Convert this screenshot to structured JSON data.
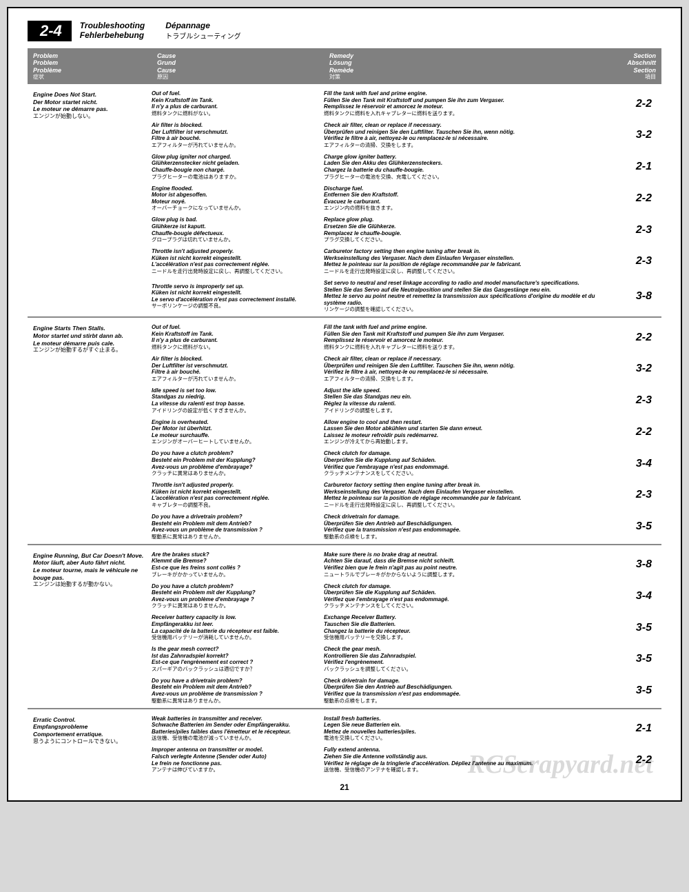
{
  "page_number": "21",
  "watermark": "RCScrapyard.net",
  "header": {
    "badge": "2-4",
    "titles": {
      "en": "Troubleshooting",
      "fr": "Dépannage",
      "de": "Fehlerbehebung",
      "jp": "トラブルシューティング"
    }
  },
  "columns": {
    "problem": {
      "en": "Problem",
      "de": "Problem",
      "fr": "Problème",
      "jp": "症状"
    },
    "cause": {
      "en": "Cause",
      "de": "Grund",
      "fr": "Cause",
      "jp": "原因"
    },
    "remedy": {
      "en": "Remedy",
      "de": "Lösung",
      "fr": "Remède",
      "jp": "対策"
    },
    "section": {
      "en": "Section",
      "de": "Abschnitt",
      "fr": "Section",
      "jp": "項目"
    }
  },
  "groups": [
    {
      "problem": {
        "en": "Engine Does Not Start.",
        "de": "Der Motor startet nicht.",
        "fr": "Le moteur ne démarre pas.",
        "jp": "エンジンが始動しない。"
      },
      "rows": [
        {
          "cause": {
            "en": "Out of fuel.",
            "de": "Kein Kraftstoff im Tank.",
            "fr": "Il n'y a plus de carburant.",
            "jp": "燃料タンクに燃料がない。"
          },
          "remedy": {
            "en": "Fill the tank with fuel and prime engine.",
            "de": "Füllen Sie den Tank mit Kraftstoff und pumpen Sie ihn zum Vergaser.",
            "fr": "Remplissez le réservoir et amorcez le moteur.",
            "jp": "燃料タンクに燃料を入れキャブレターに燃料を送ります。"
          },
          "section": "2-2"
        },
        {
          "cause": {
            "en": "Air filter is blocked.",
            "de": "Der Luftfilter ist verschmutzt.",
            "fr": "Filtre à air bouché.",
            "jp": "エアフィルターが汚れていませんか。"
          },
          "remedy": {
            "en": "Check air filter, clean or replace if necessary.",
            "de": "Überprüfen und reinigen Sie den Luftfilter. Tauschen Sie ihn, wenn nötig.",
            "fr": "Vérifiez le filtre à air, nettoyez-le ou remplacez-le si nécessaire.",
            "jp": "エアフィルターの清掃、交換をします。"
          },
          "section": "3-2"
        },
        {
          "cause": {
            "en": "Glow plug igniter not charged.",
            "de": "Glühkerzenstecker nicht geladen.",
            "fr": "Chauffe-bougie non chargé.",
            "jp": "プラグヒーターの電池はありますか。"
          },
          "remedy": {
            "en": "Charge glow igniter battery.",
            "de": "Laden Sie den Akku des Glühkerzensteckers.",
            "fr": "Chargez la batterie du chauffe-bougie.",
            "jp": "プラグヒーターの電池を交換、充電してください。"
          },
          "section": "2-1"
        },
        {
          "cause": {
            "en": "Engine flooded.",
            "de": "Motor ist abgesoffen.",
            "fr": "Moteur noyé.",
            "jp": "オーバーチョークになっていませんか。"
          },
          "remedy": {
            "en": "Discharge fuel.",
            "de": "Entfernen Sie den Kraftstoff.",
            "fr": "Évacuez le carburant.",
            "jp": "エンジン内の燃料を抜きます。"
          },
          "section": "2-2"
        },
        {
          "cause": {
            "en": "Glow plug is bad.",
            "de": "Glühkerze ist kaputt.",
            "fr": "Chauffe-bougie défectueux.",
            "jp": "グロープラグは切れていませんか。"
          },
          "remedy": {
            "en": "Replace glow plug.",
            "de": "Ersetzen Sie die Glühkerze.",
            "fr": "Remplacez le chauffe-bougie.",
            "jp": "プラグ交換してください。"
          },
          "section": "2-3"
        },
        {
          "cause": {
            "en": "Throttle isn't adjusted properly.",
            "de": "Küken ist nicht korrekt eingestellt.",
            "fr": "L'accélération n'est pas correctement réglée.",
            "jp": "ニードルを走行出発時設定に戻し、再調整してください。"
          },
          "remedy": {
            "en": "Carburetor factory setting then engine tuning after break in.",
            "de": "Werkseinstellung des Vergaser. Nach dem Einlaufen Vergaser einstellen.",
            "fr": "Mettez le pointeau sur la position de réglage recommandée par le fabricant.",
            "jp": "ニードルを走行出発時設定に戻し、再調整してください。"
          },
          "section": "2-3"
        },
        {
          "cause": {
            "en": "Throttle servo is improperly set up.",
            "de": "Küken ist nicht korrekt eingestellt.",
            "fr": "Le servo d'accélération n'est pas correctement installé.",
            "jp": "サーボリンケージの調整不良。"
          },
          "remedy": {
            "en": "Set servo to neutral and reset linkage according to radio and model manufacture's specifications.",
            "de": "Stellen Sie das Servo auf die Neutralposition und stellen Sie das Gasgestänge neu ein.",
            "fr": "Mettez le servo au point neutre et remettez la transmission aux spécifications d'origine du modèle et du système radio.",
            "jp": "リンケージの調整を確認してください。"
          },
          "section": "3-8"
        }
      ]
    },
    {
      "problem": {
        "en": "Engine Starts Then Stalls.",
        "de": "Motor startet und stirbt dann ab.",
        "fr": "Le moteur démarre puis cale.",
        "jp": "エンジンが始動するがすぐ止まる。"
      },
      "rows": [
        {
          "cause": {
            "en": "Out of fuel.",
            "de": "Kein Kraftstoff im Tank.",
            "fr": "Il n'y a plus de carburant.",
            "jp": "燃料タンクに燃料がない。"
          },
          "remedy": {
            "en": "Fill the tank with fuel and prime engine.",
            "de": "Füllen Sie den Tank mit Kraftstoff und pumpen Sie ihn zum Vergaser.",
            "fr": "Remplissez le réservoir et amorcez le moteur.",
            "jp": "燃料タンクに燃料を入れキャブレターに燃料を送ります。"
          },
          "section": "2-2"
        },
        {
          "cause": {
            "en": "Air filter is blocked.",
            "de": "Der Luftfilter ist verschmutzt.",
            "fr": "Filtre à air bouché.",
            "jp": "エアフィルターが汚れていませんか。"
          },
          "remedy": {
            "en": "Check air filter, clean or replace if necessary.",
            "de": "Überprüfen und reinigen Sie den Luftfilter. Tauschen Sie ihn, wenn nötig.",
            "fr": "Vérifiez le filtre à air, nettoyez-le ou remplacez-le si nécessaire.",
            "jp": "エアフィルターの清掃、交換をします。"
          },
          "section": "3-2"
        },
        {
          "cause": {
            "en": "Idle speed is set too low.",
            "de": "Standgas zu niedrig.",
            "fr": "La vitesse du ralenti est trop basse.",
            "jp": "アイドリングの設定が低くすぎませんか。"
          },
          "remedy": {
            "en": "Adjust the idle speed.",
            "de": "Stellen Sie das Standgas neu ein.",
            "fr": "Réglez la vitesse du ralenti.",
            "jp": "アイドリングの調整をします。"
          },
          "section": "2-3"
        },
        {
          "cause": {
            "en": "Engine is overheated.",
            "de": "Der Motor ist überhitzt.",
            "fr": "Le moteur surchauffe.",
            "jp": "エンジンがオーバーヒートしていませんか。"
          },
          "remedy": {
            "en": "Allow engine to cool and then restart.",
            "de": "Lassen Sie den Motor abkühlen und starten Sie dann erneut.",
            "fr": "Laissez le moteur refroidir puis redémarrez.",
            "jp": "エンジンが冷えてから再始動します。"
          },
          "section": "2-2"
        },
        {
          "cause": {
            "en": "Do you have a clutch problem?",
            "de": "Besteht ein Problem mit der Kupplung?",
            "fr": "Avez-vous un problème d'embrayage?",
            "jp": "クラッチに異常はありませんか。"
          },
          "remedy": {
            "en": "Check clutch for damage.",
            "de": "Überprüfen Sie die Kupplung auf Schäden.",
            "fr": "Vérifiez que l'embrayage n'est pas endommagé.",
            "jp": "クラッチメンテナンスをしてください。"
          },
          "section": "3-4"
        },
        {
          "cause": {
            "en": "Throttle isn't adjusted properly.",
            "de": "Küken ist nicht korrekt eingestellt.",
            "fr": "L'accélération n'est pas correctement réglée.",
            "jp": "キャブレターの調整不良。"
          },
          "remedy": {
            "en": "Carburetor factory setting then engine tuning after break in.",
            "de": "Werkseinstellung des Vergaser. Nach dem Einlaufen Vergaser einstellen.",
            "fr": "Mettez le pointeau sur la position de réglage recommandée par le fabricant.",
            "jp": "ニードルを走行出発時設定に戻し、再調整してください。"
          },
          "section": "2-3"
        },
        {
          "cause": {
            "en": "Do you have a drivetrain problem?",
            "de": "Besteht ein Problem mit dem Antrieb?",
            "fr": "Avez-vous un problème de transmission ?",
            "jp": "駆動系に異常はありませんか。"
          },
          "remedy": {
            "en": "Check drivetrain for damage.",
            "de": "Überprüfen Sie den Antrieb auf Beschädigungen.",
            "fr": "Vérifiez que la transmission n'est pas endommagée.",
            "jp": "駆動系の点検をします。"
          },
          "section": "3-5"
        }
      ]
    },
    {
      "problem": {
        "en": "Engine Running, But Car Doesn't Move.",
        "de": "Motor läuft, aber Auto fährt nicht.",
        "fr": "Le moteur tourne, mais le véhicule ne bouge pas.",
        "jp": "エンジンは始動するが動かない。"
      },
      "rows": [
        {
          "cause": {
            "en": "Are the brakes stuck?",
            "de": "Klemmt die Bremse?",
            "fr": "Est-ce que les freins sont collés ?",
            "jp": "ブレーキがかかっていませんか。"
          },
          "remedy": {
            "en": "Make sure there is no brake drag at neutral.",
            "de": "Achten Sie darauf, dass die Bremse nicht schleift.",
            "fr": "Vérifiez bien que le frein n'agit pas au point neutre.",
            "jp": "ニュートラルでブレーキがかからないように調整します。"
          },
          "section": "3-8"
        },
        {
          "cause": {
            "en": "Do you have a clutch problem?",
            "de": "Besteht ein Problem mit der Kupplung?",
            "fr": "Avez-vous un problème d'embrayage ?",
            "jp": "クラッチに異常はありませんか。"
          },
          "remedy": {
            "en": "Check clutch for damage.",
            "de": "Überprüfen Sie die Kupplung auf Schäden.",
            "fr": "Vérifiez que l'embrayage n'est pas endommagé.",
            "jp": "クラッチメンテナンスをしてください。"
          },
          "section": "3-4"
        },
        {
          "cause": {
            "en": "Receiver battery capacity is low.",
            "de": "Empfängerakku ist leer.",
            "fr": "La capacité de la batterie du récepteur est faible.",
            "jp": "受信機用バッテリーが消耗していませんか。"
          },
          "remedy": {
            "en": "Exchange Receiver Battery.",
            "de": "Tauschen Sie die Batterien.",
            "fr": "Changez la batterie du récepteur.",
            "jp": "受信機用バッテリーを交換します。"
          },
          "section": "3-5"
        },
        {
          "cause": {
            "en": "Is the gear mesh correct?",
            "de": "Ist das Zahnradspiel korrekt?",
            "fr": "Est-ce que l'engrènement est correct ?",
            "jp": "スパーギアのバックラッシュは適切ですか？"
          },
          "remedy": {
            "en": "Check the gear mesh.",
            "de": "Kontrollieren Sie das Zahnradspiel.",
            "fr": "Vérifiez l'engrènement.",
            "jp": "バックラッシュを調整してください。"
          },
          "section": "3-5"
        },
        {
          "cause": {
            "en": "Do you have a drivetrain problem?",
            "de": "Besteht ein Problem mit dem Antrieb?",
            "fr": "Avez-vous un problème de transmission ?",
            "jp": "駆動系に異常はありませんか。"
          },
          "remedy": {
            "en": "Check drivetrain for damage.",
            "de": "Überprüfen Sie den Antrieb auf Beschädigungen.",
            "fr": "Vérifiez que la transmission n'est pas endommagée.",
            "jp": "駆動系の点検をします。"
          },
          "section": "3-5"
        }
      ]
    },
    {
      "problem": {
        "en": "Erratic Control.",
        "de": "Empfangsprobleme",
        "fr": "Comportement erratique.",
        "jp": "思うようにコントロールできない。"
      },
      "rows": [
        {
          "cause": {
            "en": "Weak batteries in transmitter and receiver.",
            "de": "Schwache Batterien im Sender oder Empfängerakku.",
            "fr": "Batteries/piles faibles dans l'émetteur et le récepteur.",
            "jp": "送信機、受信機の電池が減っていませんか。"
          },
          "remedy": {
            "en": "Install fresh batteries.",
            "de": "Legen Sie neue Batterien ein.",
            "fr": "Mettez de nouvelles batteries/piles.",
            "jp": "電池を交換してください。"
          },
          "section": "2-1"
        },
        {
          "cause": {
            "en": "Improper antenna on transmitter or model.",
            "de": "Falsch verlegte Antenne (Sender oder Auto)",
            "fr": "Le frein ne fonctionne pas.",
            "jp": "アンテナは伸びていますか。"
          },
          "remedy": {
            "en": "Fully extend antenna.",
            "de": "Ziehen Sie die Antenne vollständig aus.",
            "fr": "Vérifiez le réglage de la tringlerie d'accélération. Dépliez l'antenne au maximum.",
            "jp": "送信機、受信機のアンテナを確認します。"
          },
          "section": "2-2"
        }
      ]
    }
  ]
}
